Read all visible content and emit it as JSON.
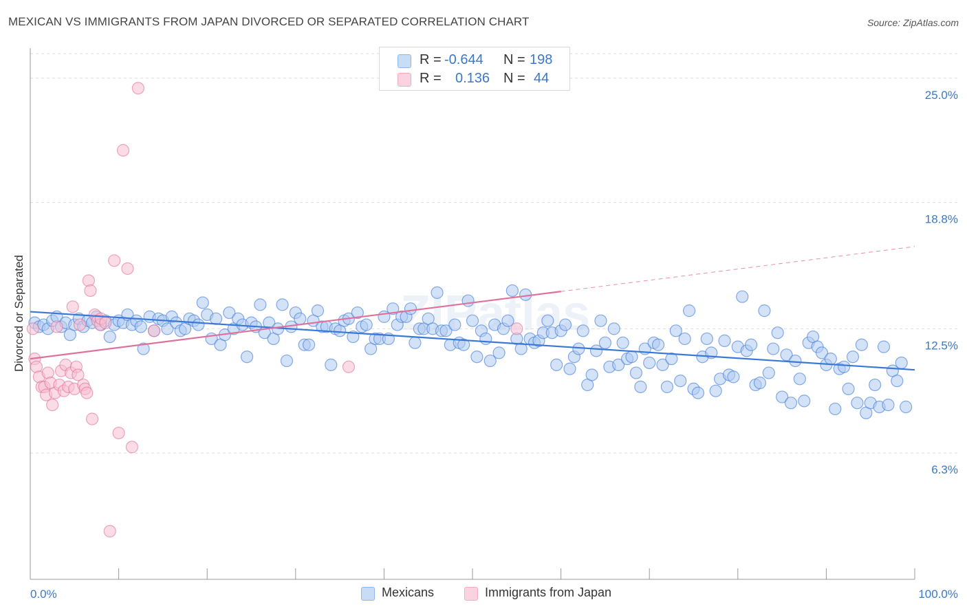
{
  "title": "MEXICAN VS IMMIGRANTS FROM JAPAN DIVORCED OR SEPARATED CORRELATION CHART",
  "source": "Source: ZipAtlas.com",
  "watermark": "ZIPatlas",
  "legend": {
    "rows": [
      {
        "r_label": "R =",
        "r_value": "-0.644",
        "n_label": "N =",
        "n_value": "198",
        "color": "#8fb6ea"
      },
      {
        "r_label": "R =",
        "r_value": "0.136",
        "n_label": "N =",
        "n_value": "44",
        "color": "#f4a9bf"
      }
    ]
  },
  "bottom_legend": [
    {
      "label": "Mexicans",
      "color": "#8fb6ea"
    },
    {
      "label": "Immigrants from Japan",
      "color": "#f4a9bf"
    }
  ],
  "chart_data": {
    "type": "scatter",
    "ylabel": "Divorced or Separated",
    "xlabel": "",
    "xlim": [
      0,
      100
    ],
    "ylim": [
      0,
      26.5
    ],
    "x_tick_labels": [
      "0.0%",
      "100.0%"
    ],
    "y_ticks": [
      {
        "value": 6.3,
        "label": "6.3%"
      },
      {
        "value": 12.5,
        "label": "12.5%"
      },
      {
        "value": 18.8,
        "label": "18.8%"
      },
      {
        "value": 25.0,
        "label": "25.0%"
      }
    ],
    "grid": "horizontal dashed",
    "series": [
      {
        "name": "Mexicans",
        "color": "#3a78d8",
        "fill": "#aecbf0",
        "trend": {
          "x0": 0,
          "y0": 13.35,
          "x1": 100,
          "y1": 10.45,
          "dashed_from": null
        },
        "points": [
          [
            0.5,
            12.8
          ],
          [
            1,
            12.6
          ],
          [
            1.5,
            12.7
          ],
          [
            2,
            12.5
          ],
          [
            2.5,
            12.9
          ],
          [
            3,
            13.1
          ],
          [
            3.5,
            12.6
          ],
          [
            4,
            12.8
          ],
          [
            4.5,
            12.2
          ],
          [
            5,
            12.7
          ],
          [
            5.5,
            13.0
          ],
          [
            6,
            12.6
          ],
          [
            6.5,
            12.9
          ],
          [
            7,
            12.8
          ],
          [
            7.5,
            13.1
          ],
          [
            8,
            12.7
          ],
          [
            8.5,
            12.9
          ],
          [
            9,
            12.1
          ],
          [
            9.5,
            12.7
          ],
          [
            10,
            12.9
          ],
          [
            10.5,
            12.8
          ],
          [
            11,
            13.2
          ],
          [
            11.5,
            12.7
          ],
          [
            12,
            12.9
          ],
          [
            12.5,
            12.6
          ],
          [
            12.8,
            11.5
          ],
          [
            13.5,
            13.1
          ],
          [
            14,
            12.4
          ],
          [
            14.5,
            13.0
          ],
          [
            15,
            12.9
          ],
          [
            15.5,
            12.5
          ],
          [
            16,
            13.1
          ],
          [
            16.5,
            12.8
          ],
          [
            17,
            12.4
          ],
          [
            17.5,
            12.5
          ],
          [
            18,
            13.0
          ],
          [
            18.5,
            12.9
          ],
          [
            19,
            12.7
          ],
          [
            19.5,
            13.8
          ],
          [
            20,
            13.2
          ],
          [
            20.5,
            12.0
          ],
          [
            21,
            13.0
          ],
          [
            21.5,
            11.7
          ],
          [
            22,
            12.2
          ],
          [
            22.5,
            13.3
          ],
          [
            23,
            12.5
          ],
          [
            23.5,
            13.0
          ],
          [
            24,
            12.7
          ],
          [
            24.5,
            11.1
          ],
          [
            25,
            12.8
          ],
          [
            25.5,
            12.6
          ],
          [
            26,
            13.7
          ],
          [
            26.5,
            12.3
          ],
          [
            27,
            12.8
          ],
          [
            27.5,
            12.0
          ],
          [
            28,
            12.5
          ],
          [
            28.5,
            13.7
          ],
          [
            29,
            10.9
          ],
          [
            29.5,
            12.6
          ],
          [
            30,
            13.3
          ],
          [
            30.5,
            13.0
          ],
          [
            31,
            11.7
          ],
          [
            31.5,
            11.7
          ],
          [
            32,
            12.9
          ],
          [
            32.5,
            13.4
          ],
          [
            33,
            12.6
          ],
          [
            33.5,
            12.6
          ],
          [
            34,
            10.7
          ],
          [
            34.5,
            12.5
          ],
          [
            35,
            12.4
          ],
          [
            35.5,
            12.9
          ],
          [
            36,
            13.0
          ],
          [
            36.5,
            12.1
          ],
          [
            37,
            13.3
          ],
          [
            37.5,
            12.6
          ],
          [
            38,
            12.7
          ],
          [
            38.5,
            11.5
          ],
          [
            39,
            12.0
          ],
          [
            39.5,
            12.0
          ],
          [
            40,
            13.1
          ],
          [
            40.5,
            12.0
          ],
          [
            41,
            13.5
          ],
          [
            41.5,
            12.7
          ],
          [
            42,
            13.1
          ],
          [
            42.5,
            13.1
          ],
          [
            43,
            13.5
          ],
          [
            43.5,
            11.8
          ],
          [
            44,
            12.5
          ],
          [
            44.5,
            12.5
          ],
          [
            45,
            13.0
          ],
          [
            45.5,
            12.5
          ],
          [
            46,
            14.3
          ],
          [
            46.5,
            12.4
          ],
          [
            47,
            12.4
          ],
          [
            47.5,
            11.7
          ],
          [
            48,
            12.7
          ],
          [
            48.5,
            11.8
          ],
          [
            49,
            11.7
          ],
          [
            49.5,
            13.9
          ],
          [
            50,
            12.9
          ],
          [
            50.5,
            11.1
          ],
          [
            51,
            12.4
          ],
          [
            51.5,
            12.0
          ],
          [
            52,
            10.9
          ],
          [
            52.5,
            12.7
          ],
          [
            53,
            11.3
          ],
          [
            53.5,
            12.5
          ],
          [
            54,
            12.9
          ],
          [
            54.5,
            14.4
          ],
          [
            55,
            12.0
          ],
          [
            55.5,
            11.5
          ],
          [
            56,
            14.2
          ],
          [
            56.5,
            12.0
          ],
          [
            57,
            11.8
          ],
          [
            57.5,
            11.9
          ],
          [
            58,
            12.3
          ],
          [
            58.5,
            12.9
          ],
          [
            59,
            12.3
          ],
          [
            59.5,
            10.7
          ],
          [
            60,
            12.4
          ],
          [
            60.5,
            12.7
          ],
          [
            61,
            10.5
          ],
          [
            61.5,
            11.1
          ],
          [
            62,
            11.5
          ],
          [
            62.5,
            12.4
          ],
          [
            63,
            9.7
          ],
          [
            63.5,
            10.2
          ],
          [
            64,
            11.4
          ],
          [
            64.5,
            12.9
          ],
          [
            65,
            11.8
          ],
          [
            65.5,
            10.6
          ],
          [
            66,
            12.5
          ],
          [
            66.5,
            10.7
          ],
          [
            67,
            11.8
          ],
          [
            67.5,
            11.0
          ],
          [
            68,
            11.1
          ],
          [
            68.5,
            10.3
          ],
          [
            69,
            9.6
          ],
          [
            69.5,
            11.5
          ],
          [
            70,
            10.8
          ],
          [
            70.5,
            11.8
          ],
          [
            71,
            11.7
          ],
          [
            71.5,
            10.7
          ],
          [
            72,
            9.6
          ],
          [
            72.5,
            11.0
          ],
          [
            73,
            12.4
          ],
          [
            73.5,
            9.9
          ],
          [
            74,
            12.0
          ],
          [
            74.5,
            13.4
          ],
          [
            75,
            9.5
          ],
          [
            75.5,
            9.3
          ],
          [
            76,
            11.1
          ],
          [
            76.5,
            12.0
          ],
          [
            77,
            11.3
          ],
          [
            77.5,
            9.4
          ],
          [
            78,
            10.0
          ],
          [
            78.5,
            11.9
          ],
          [
            79,
            10.2
          ],
          [
            79.5,
            10.1
          ],
          [
            80,
            11.6
          ],
          [
            80.5,
            14.1
          ],
          [
            81,
            11.4
          ],
          [
            81.5,
            11.7
          ],
          [
            82,
            9.7
          ],
          [
            82.5,
            9.8
          ],
          [
            83,
            13.4
          ],
          [
            83.5,
            10.3
          ],
          [
            84,
            11.5
          ],
          [
            84.5,
            12.3
          ],
          [
            85,
            9.1
          ],
          [
            85.5,
            11.2
          ],
          [
            86,
            8.8
          ],
          [
            86.5,
            10.9
          ],
          [
            87,
            10.0
          ],
          [
            87.5,
            8.9
          ],
          [
            88,
            11.8
          ],
          [
            88.5,
            12.1
          ],
          [
            89,
            11.6
          ],
          [
            89.5,
            11.3
          ],
          [
            90,
            10.7
          ],
          [
            90.5,
            11.0
          ],
          [
            91,
            8.5
          ],
          [
            91.5,
            10.5
          ],
          [
            92,
            10.6
          ],
          [
            92.5,
            9.5
          ],
          [
            93,
            11.1
          ],
          [
            93.5,
            8.8
          ],
          [
            94,
            11.7
          ],
          [
            94.5,
            8.3
          ],
          [
            95,
            8.8
          ],
          [
            95.5,
            9.7
          ],
          [
            96,
            8.6
          ],
          [
            96.5,
            11.6
          ],
          [
            97,
            8.7
          ],
          [
            97.5,
            10.4
          ],
          [
            98,
            9.9
          ],
          [
            98.5,
            10.8
          ],
          [
            99,
            8.6
          ]
        ]
      },
      {
        "name": "Immigrants from Japan",
        "color": "#e0709a",
        "fill": "#f7bfd1",
        "trend": {
          "x0": 0,
          "y0": 11.0,
          "x1": 100,
          "y1": 16.6,
          "dashed_from": 60
        },
        "points": [
          [
            0.3,
            12.5
          ],
          [
            0.5,
            11.0
          ],
          [
            0.7,
            10.6
          ],
          [
            1,
            10.1
          ],
          [
            1.3,
            9.6
          ],
          [
            1.6,
            9.6
          ],
          [
            1.8,
            9.2
          ],
          [
            2,
            10.3
          ],
          [
            2.3,
            9.8
          ],
          [
            2.5,
            8.7
          ],
          [
            2.8,
            9.3
          ],
          [
            3,
            12.6
          ],
          [
            3.3,
            9.7
          ],
          [
            3.5,
            10.4
          ],
          [
            3.8,
            9.4
          ],
          [
            4,
            10.7
          ],
          [
            4.3,
            9.6
          ],
          [
            4.6,
            10.3
          ],
          [
            4.8,
            13.6
          ],
          [
            5,
            9.5
          ],
          [
            5.2,
            10.6
          ],
          [
            5.4,
            10.2
          ],
          [
            5.6,
            12.7
          ],
          [
            6,
            9.7
          ],
          [
            6.2,
            9.5
          ],
          [
            6.4,
            9.3
          ],
          [
            6.6,
            14.9
          ],
          [
            6.8,
            14.4
          ],
          [
            7,
            8.0
          ],
          [
            7.3,
            13.2
          ],
          [
            7.6,
            12.9
          ],
          [
            7.9,
            12.7
          ],
          [
            8,
            13.0
          ],
          [
            8.5,
            12.8
          ],
          [
            9,
            2.4
          ],
          [
            9.5,
            15.9
          ],
          [
            10,
            7.3
          ],
          [
            10.5,
            21.4
          ],
          [
            11,
            15.5
          ],
          [
            11.5,
            6.6
          ],
          [
            12.2,
            24.5
          ],
          [
            14,
            12.4
          ],
          [
            36,
            10.6
          ],
          [
            55,
            12.5
          ]
        ]
      }
    ]
  }
}
